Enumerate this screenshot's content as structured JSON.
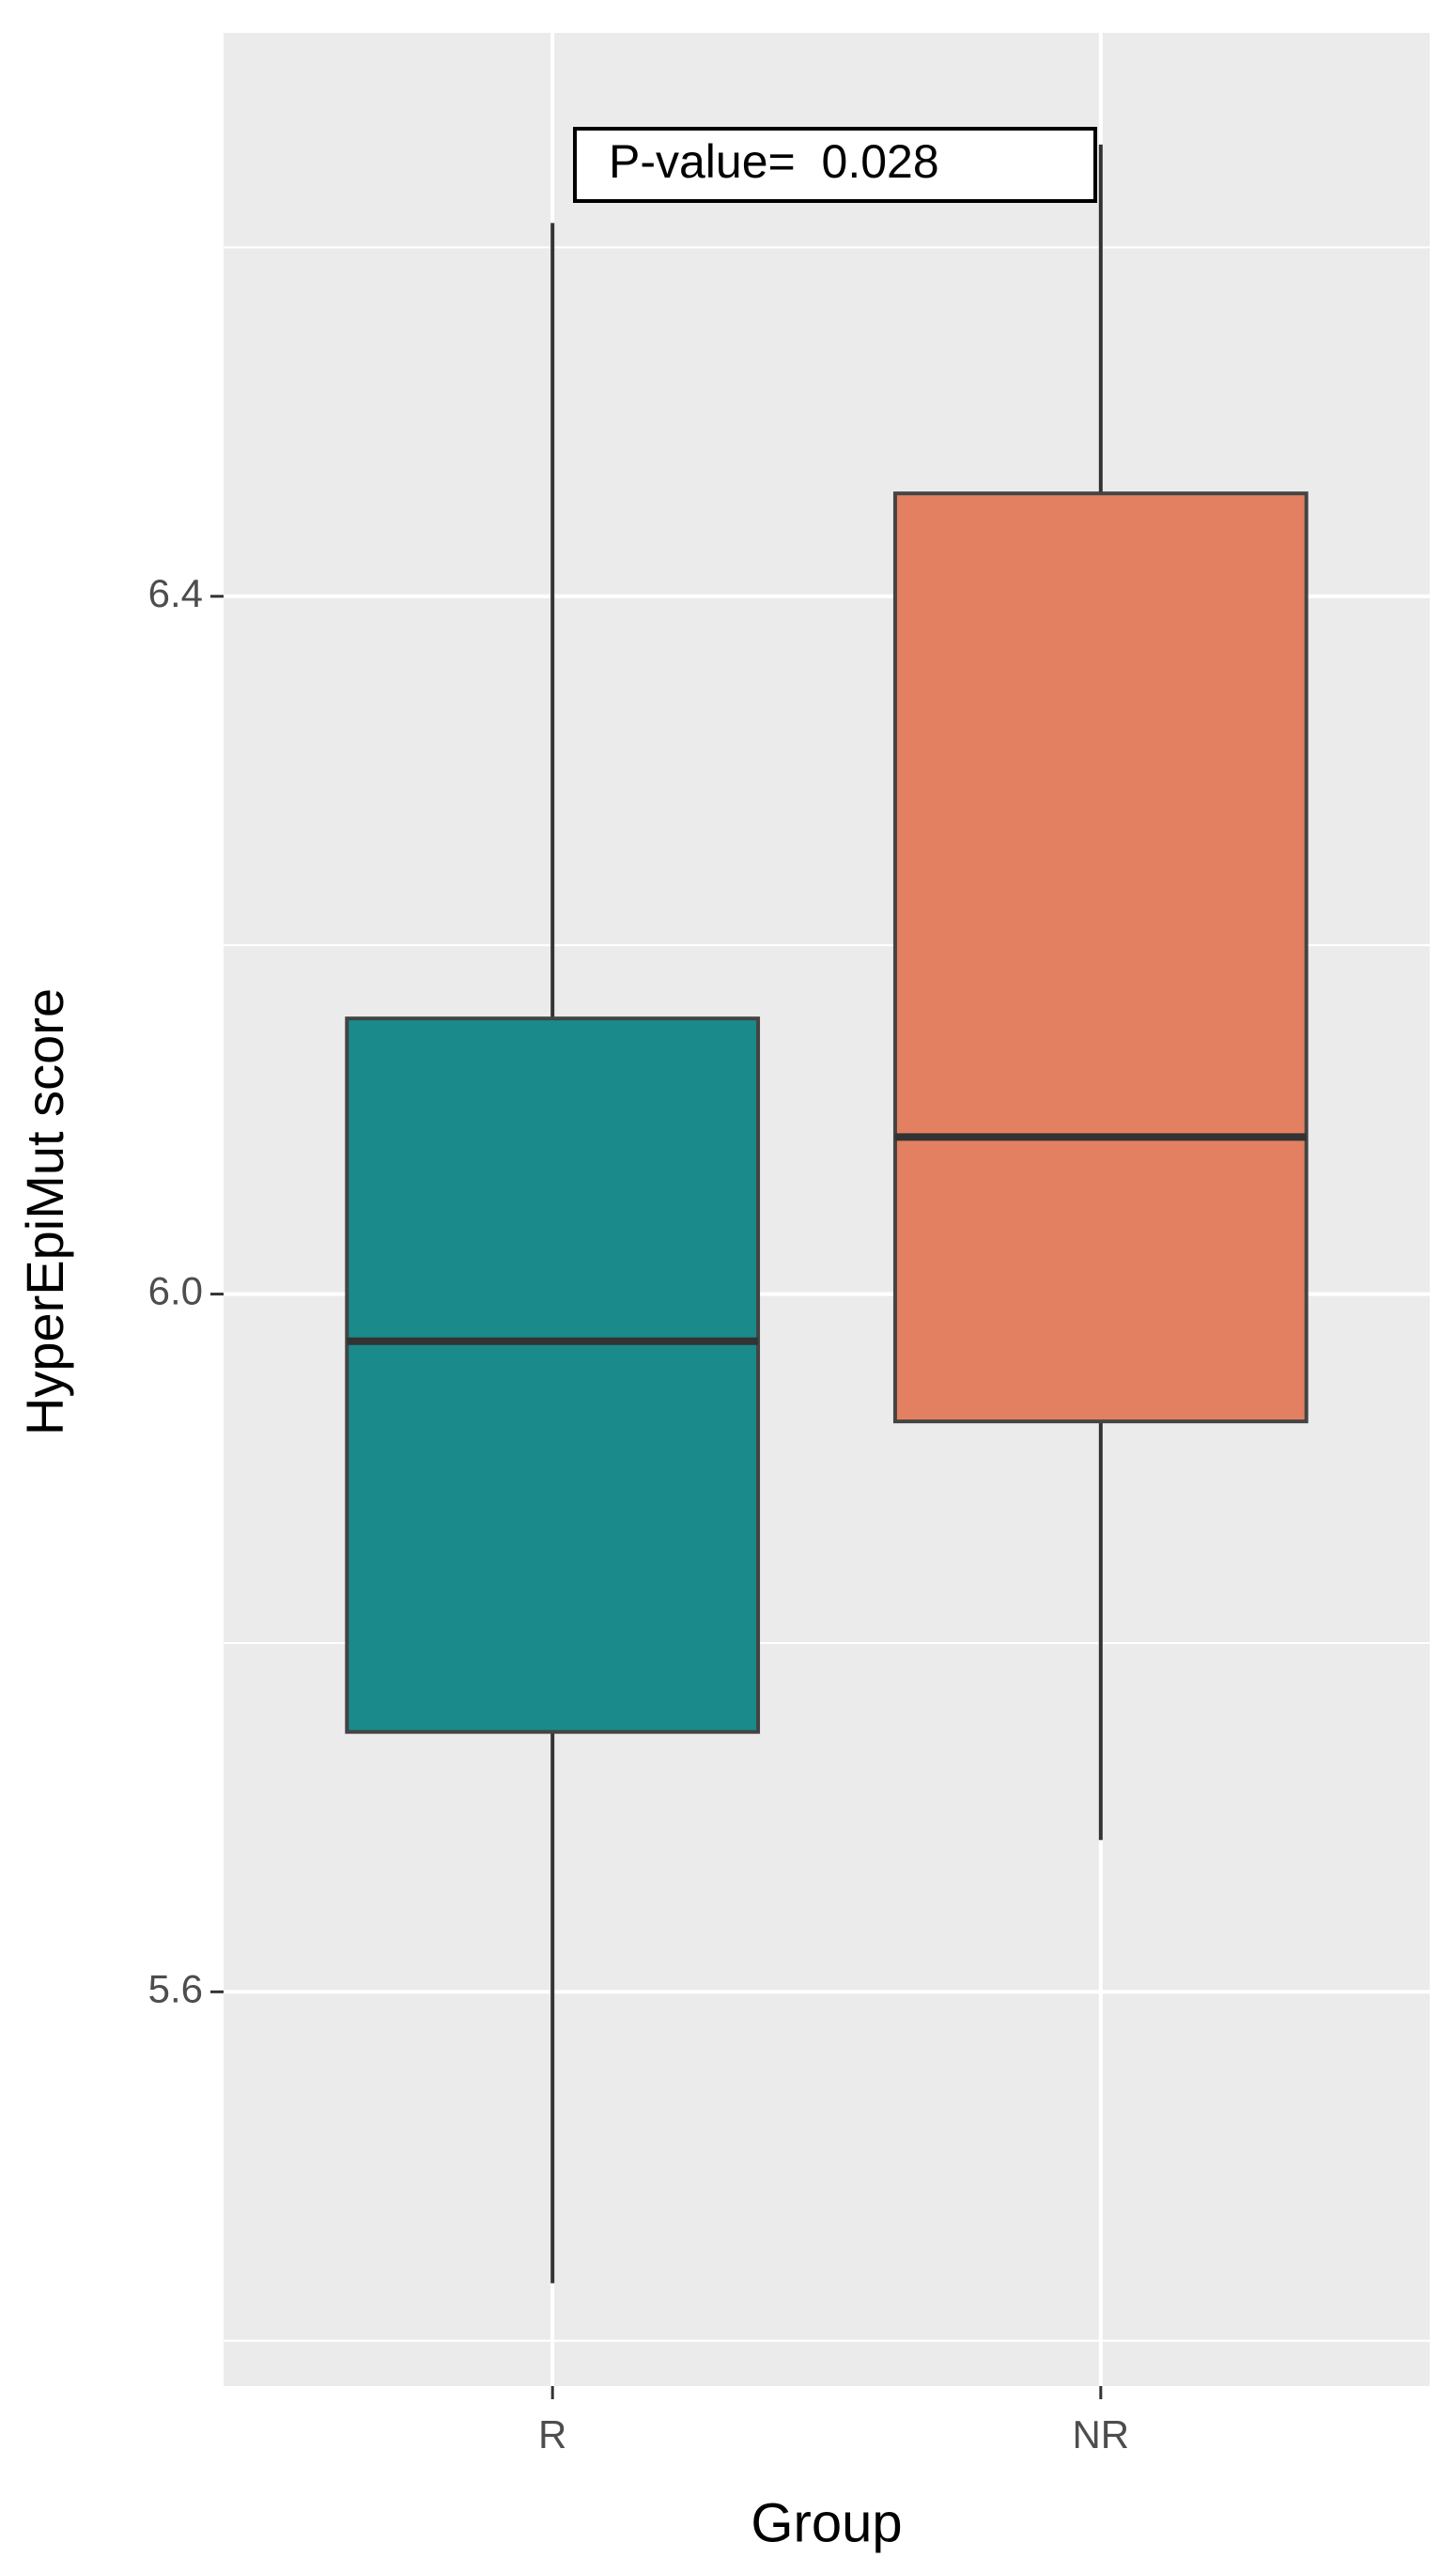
{
  "chart_data": {
    "type": "box",
    "annotation": "P-value=  0.028",
    "x_label": "Group",
    "y_label": "HyperEpiMut score",
    "categories": [
      "R",
      "NR"
    ],
    "boxes": [
      {
        "min": 5.433,
        "q1": 5.749,
        "median": 5.973,
        "q3": 6.158,
        "max": 6.614,
        "color": "#1a8a8a"
      },
      {
        "min": 5.687,
        "q1": 5.927,
        "median": 6.09,
        "q3": 6.459,
        "max": 6.659,
        "color": "#e38062"
      }
    ],
    "ylim": [
      5.374,
      6.723
    ],
    "yticks": [
      5.6,
      {
        "value": 6,
        "label": "6.0"
      },
      6.4
    ],
    "minor_yticks": [
      5.4,
      5.8,
      6.2,
      6.6
    ],
    "grid": true
  }
}
